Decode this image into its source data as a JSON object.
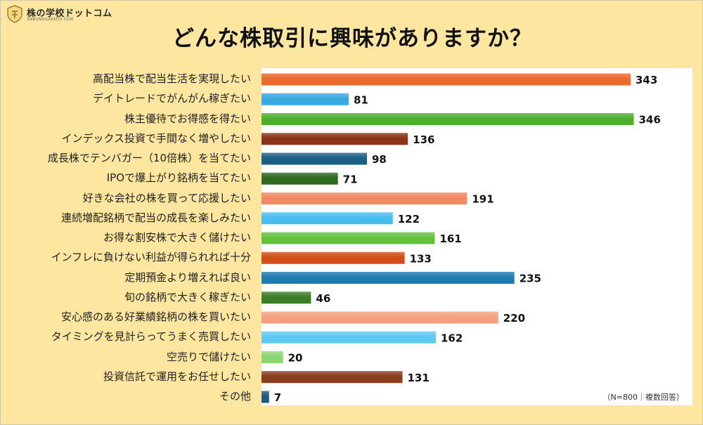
{
  "brand": {
    "name": "株の学校ドットコム",
    "subtitle": "KABUNOGAKKOU.COM"
  },
  "colors": {
    "background": "#fde6a0",
    "plot_bg": "#ffffff"
  },
  "footnote": "（N=800｜複数回答）",
  "chart_data": {
    "type": "bar",
    "orientation": "horizontal",
    "title": "どんな株取引に興味がありますか？",
    "categories": [
      "高配当株で配当生活を実現したい",
      "デイトレードでがんがん稼ぎたい",
      "株主優待でお得感を得たい",
      "インデックス投資で手間なく増やしたい",
      "成長株でテンバガー（10倍株）を当てたい",
      "IPOで爆上がり銘柄を当てたい",
      "好きな会社の株を買って応援したい",
      "連続増配銘柄で配当の成長を楽しみたい",
      "お得な割安株で大きく儲けたい",
      "インフレに負けない利益が得られれば十分",
      "定期預金より増えれば良い",
      "旬の銘柄で大きく稼ぎたい",
      "安心感のある好業績銘柄の株を買いたい",
      "タイミングを見計らってうまく売買したい",
      "空売りで儲けたい",
      "投資信託で運用をお任せしたい",
      "その他"
    ],
    "values": [
      343,
      81,
      346,
      136,
      98,
      71,
      191,
      122,
      161,
      133,
      235,
      46,
      220,
      162,
      20,
      131,
      7
    ],
    "colors": [
      "#ea6a2f",
      "#3aa9e0",
      "#4fae2e",
      "#8b3418",
      "#1b5f86",
      "#2f6a1f",
      "#f18a62",
      "#48bdf0",
      "#66c23e",
      "#d14e18",
      "#1f7bb0",
      "#3b7d27",
      "#f4a07e",
      "#5ec8f3",
      "#8cd772",
      "#8a3d1d",
      "#1d5a82"
    ],
    "data_labels": true,
    "grid": false
  }
}
